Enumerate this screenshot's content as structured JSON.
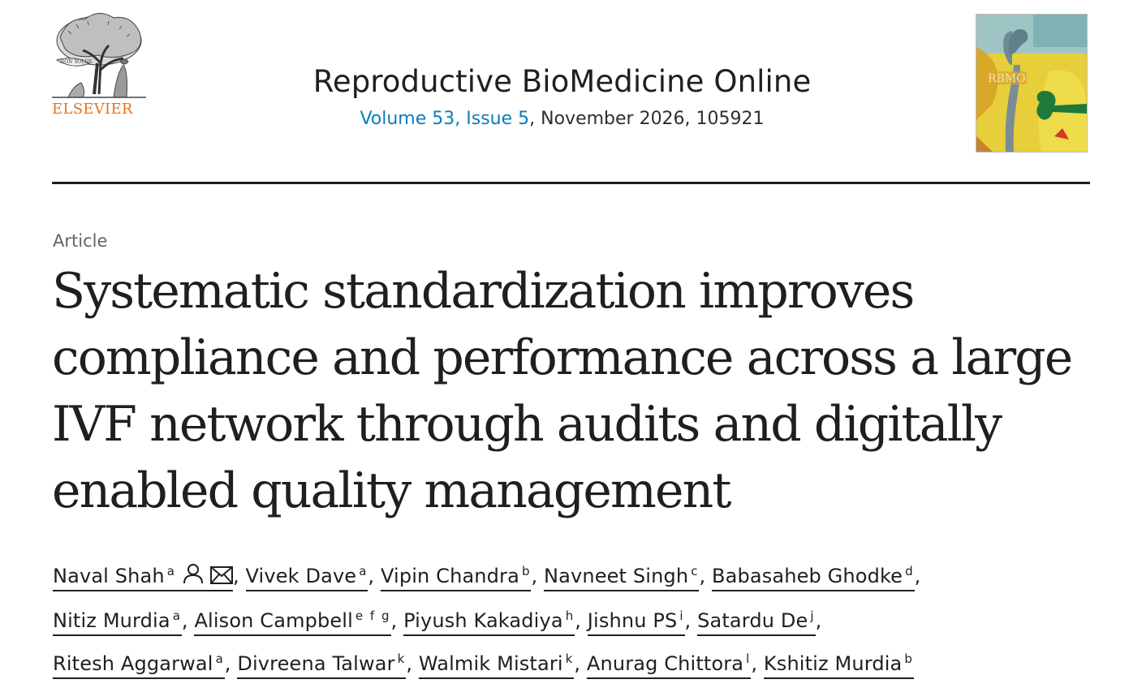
{
  "header": {
    "publisher": "ELSEVIER",
    "journal_title": "Reproductive BioMedicine Online",
    "issue_link": "Volume 53, Issue 5",
    "issue_rest": ", November 2026, 105921",
    "cover_label": "RBMO"
  },
  "article": {
    "type": "Article",
    "title": "Systematic standardization improves compliance and performance across a large IVF network through audits and digitally enabled quality management"
  },
  "authors": [
    {
      "name": "Naval Shah",
      "aff": "a",
      "icons": [
        "person-icon",
        "envelope-icon"
      ]
    },
    {
      "name": "Vivek Dave",
      "aff": "a"
    },
    {
      "name": "Vipin Chandra",
      "aff": "b"
    },
    {
      "name": "Navneet Singh",
      "aff": "c"
    },
    {
      "name": "Babasaheb Ghodke",
      "aff": "d"
    },
    {
      "name": "Nitiz Murdia",
      "aff": "a"
    },
    {
      "name": "Alison Campbell",
      "aff": "e f g"
    },
    {
      "name": "Piyush Kakadiya",
      "aff": "h"
    },
    {
      "name": "Jishnu PS",
      "aff": "i"
    },
    {
      "name": "Satardu De",
      "aff": "j"
    },
    {
      "name": "Ritesh Aggarwal",
      "aff": "a"
    },
    {
      "name": "Divreena Talwar",
      "aff": "k"
    },
    {
      "name": "Walmik Mistari",
      "aff": "k"
    },
    {
      "name": "Anurag Chittora",
      "aff": "l"
    },
    {
      "name": "Kshitiz Murdia",
      "aff": "b"
    }
  ],
  "colors": {
    "publisher_orange": "#e9711c",
    "link_blue": "#0c7dbb",
    "text": "#1f1f1f"
  }
}
